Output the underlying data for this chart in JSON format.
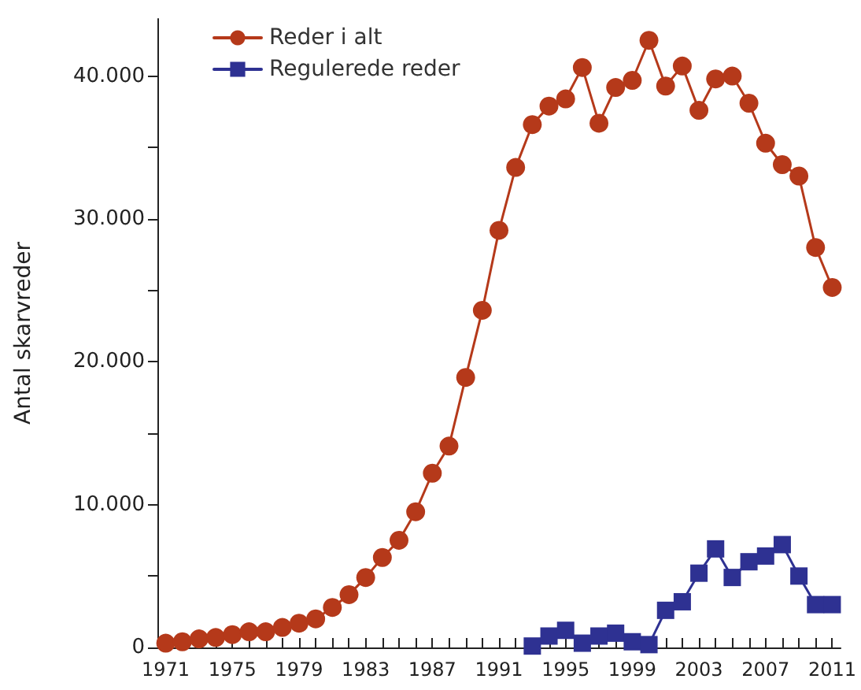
{
  "chart_data": {
    "type": "line",
    "ylabel": "Antal skarvreder",
    "x": [
      1971,
      1972,
      1973,
      1974,
      1975,
      1976,
      1977,
      1978,
      1979,
      1980,
      1981,
      1982,
      1983,
      1984,
      1985,
      1986,
      1987,
      1988,
      1989,
      1990,
      1991,
      1992,
      1993,
      1994,
      1995,
      1996,
      1997,
      1998,
      1999,
      2000,
      2001,
      2002,
      2003,
      2004,
      2005,
      2006,
      2007,
      2008,
      2009,
      2010,
      2011
    ],
    "series": [
      {
        "name": "Reder i alt",
        "color": "#b5391a",
        "marker": "circle",
        "values": [
          300,
          400,
          600,
          700,
          900,
          1100,
          1100,
          1400,
          1700,
          2000,
          2800,
          3700,
          4900,
          6300,
          7500,
          9500,
          12200,
          14100,
          18900,
          23600,
          29200,
          33600,
          36600,
          37900,
          38400,
          40600,
          36700,
          39200,
          39700,
          42500,
          39300,
          40700,
          37600,
          39800,
          40000,
          38100,
          35300,
          33800,
          33000,
          28000,
          25200
        ]
      },
      {
        "name": "Regulerede reder",
        "color": "#2e3192",
        "marker": "square",
        "x": [
          1993,
          1994,
          1995,
          1996,
          1997,
          1998,
          1999,
          2000,
          2001,
          2002,
          2003,
          2004,
          2005,
          2006,
          2007,
          2008,
          2009,
          2010,
          2011
        ],
        "values": [
          100,
          800,
          1200,
          300,
          800,
          1000,
          400,
          200,
          2600,
          3200,
          5200,
          6900,
          4900,
          6000,
          6400,
          7200,
          5000,
          3000,
          3000
        ]
      }
    ],
    "xlim": [
      1970.5,
      2011.5
    ],
    "xticks": [
      1971,
      {
        "value": 1972,
        "label": null
      },
      {
        "value": 1973,
        "label": null
      },
      {
        "value": 1974,
        "label": null
      },
      1975,
      {
        "value": 1976,
        "label": null
      },
      {
        "value": 1977,
        "label": null
      },
      {
        "value": 1978,
        "label": null
      },
      1979,
      {
        "value": 1980,
        "label": null
      },
      {
        "value": 1981,
        "label": null
      },
      {
        "value": 1982,
        "label": null
      },
      1983,
      {
        "value": 1984,
        "label": null
      },
      {
        "value": 1985,
        "label": null
      },
      {
        "value": 1986,
        "label": null
      },
      1987,
      {
        "value": 1988,
        "label": null
      },
      {
        "value": 1989,
        "label": null
      },
      {
        "value": 1990,
        "label": null
      },
      1991,
      {
        "value": 1992,
        "label": null
      },
      {
        "value": 1993,
        "label": null
      },
      {
        "value": 1994,
        "label": null
      },
      1995,
      {
        "value": 1996,
        "label": null
      },
      {
        "value": 1997,
        "label": null
      },
      {
        "value": 1998,
        "label": null
      },
      1999,
      {
        "value": 2000,
        "label": null
      },
      {
        "value": 2001,
        "label": null
      },
      {
        "value": 2002,
        "label": null
      },
      2003,
      {
        "value": 2004,
        "label": null
      },
      {
        "value": 2005,
        "label": null
      },
      {
        "value": 2006,
        "label": null
      },
      2007,
      {
        "value": 2008,
        "label": null
      },
      {
        "value": 2009,
        "label": null
      },
      {
        "value": 2010,
        "label": null
      },
      2011
    ],
    "ylim": [
      0,
      44000
    ],
    "yticks": [
      0,
      {
        "value": 5000,
        "label": null
      },
      {
        "value": 10000,
        "label": "10.000"
      },
      {
        "value": 15000,
        "label": null
      },
      {
        "value": 20000,
        "label": "20.000"
      },
      {
        "value": 25000,
        "label": null
      },
      {
        "value": 30000,
        "label": "30.000"
      },
      {
        "value": 35000,
        "label": null
      },
      {
        "value": 40000,
        "label": "40.000"
      }
    ],
    "grid": false,
    "legend": "top left",
    "line_style": "solid"
  }
}
